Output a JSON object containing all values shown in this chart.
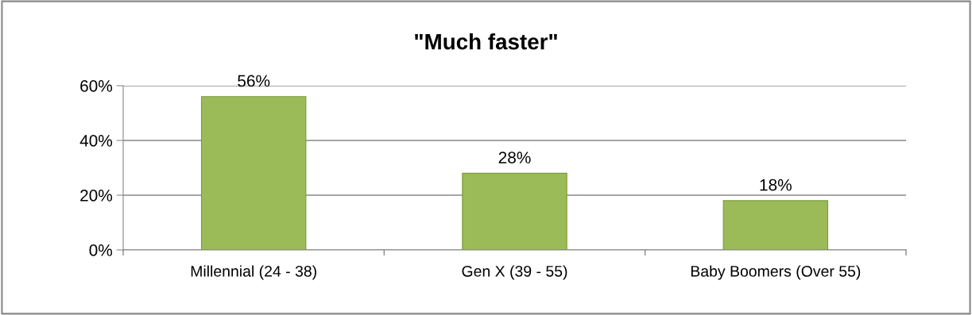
{
  "chart_data": {
    "type": "bar",
    "title": "\"Much faster\"",
    "categories": [
      "Millennial (24 - 38)",
      "Gen X (39 - 55)",
      "Baby Boomers (Over 55)"
    ],
    "values": [
      56,
      28,
      18
    ],
    "color": "#9bbb59",
    "value_labels": [
      "56%",
      "28%",
      "18%"
    ],
    "ylim": [
      0,
      60
    ],
    "yticks": [
      {
        "value": 0,
        "label": "0%"
      },
      {
        "value": 20,
        "label": "20%"
      },
      {
        "value": 40,
        "label": "40%"
      },
      {
        "value": 60,
        "label": "60%"
      }
    ],
    "grid": "y",
    "legend": false
  }
}
